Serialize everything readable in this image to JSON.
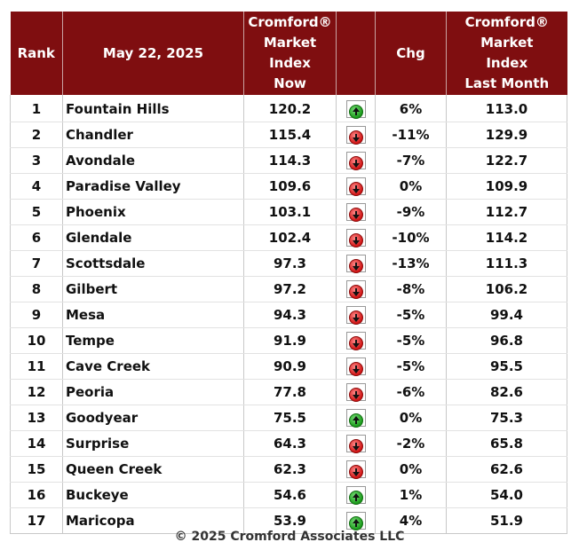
{
  "chart_data": {
    "type": "table",
    "headers": {
      "rank": "Rank",
      "date": "May 22, 2025",
      "now": [
        "Cromford®",
        "Market",
        "Index",
        "Now"
      ],
      "trend": "",
      "chg": "Chg",
      "last": [
        "Cromford®",
        "Market",
        "Index",
        "Last Month"
      ]
    },
    "rows": [
      {
        "rank": "1",
        "city": "Fountain Hills",
        "now": "120.2",
        "trend": "up",
        "chg": "6%",
        "last": "113.0"
      },
      {
        "rank": "2",
        "city": "Chandler",
        "now": "115.4",
        "trend": "down",
        "chg": "-11%",
        "last": "129.9"
      },
      {
        "rank": "3",
        "city": "Avondale",
        "now": "114.3",
        "trend": "down",
        "chg": "-7%",
        "last": "122.7"
      },
      {
        "rank": "4",
        "city": "Paradise Valley",
        "now": "109.6",
        "trend": "down",
        "chg": "0%",
        "last": "109.9"
      },
      {
        "rank": "5",
        "city": "Phoenix",
        "now": "103.1",
        "trend": "down",
        "chg": "-9%",
        "last": "112.7"
      },
      {
        "rank": "6",
        "city": "Glendale",
        "now": "102.4",
        "trend": "down",
        "chg": "-10%",
        "last": "114.2"
      },
      {
        "rank": "7",
        "city": "Scottsdale",
        "now": "97.3",
        "trend": "down",
        "chg": "-13%",
        "last": "111.3"
      },
      {
        "rank": "8",
        "city": "Gilbert",
        "now": "97.2",
        "trend": "down",
        "chg": "-8%",
        "last": "106.2"
      },
      {
        "rank": "9",
        "city": "Mesa",
        "now": "94.3",
        "trend": "down",
        "chg": "-5%",
        "last": "99.4"
      },
      {
        "rank": "10",
        "city": "Tempe",
        "now": "91.9",
        "trend": "down",
        "chg": "-5%",
        "last": "96.8"
      },
      {
        "rank": "11",
        "city": "Cave Creek",
        "now": "90.9",
        "trend": "down",
        "chg": "-5%",
        "last": "95.5"
      },
      {
        "rank": "12",
        "city": "Peoria",
        "now": "77.8",
        "trend": "down",
        "chg": "-6%",
        "last": "82.6"
      },
      {
        "rank": "13",
        "city": "Goodyear",
        "now": "75.5",
        "trend": "up",
        "chg": "0%",
        "last": "75.3"
      },
      {
        "rank": "14",
        "city": "Surprise",
        "now": "64.3",
        "trend": "down",
        "chg": "-2%",
        "last": "65.8"
      },
      {
        "rank": "15",
        "city": "Queen Creek",
        "now": "62.3",
        "trend": "down",
        "chg": "0%",
        "last": "62.6"
      },
      {
        "rank": "16",
        "city": "Buckeye",
        "now": "54.6",
        "trend": "up",
        "chg": "1%",
        "last": "54.0"
      },
      {
        "rank": "17",
        "city": "Maricopa",
        "now": "53.9",
        "trend": "up",
        "chg": "4%",
        "last": "51.9"
      }
    ],
    "trend_icons": {
      "up": "green-up-arrow-icon",
      "down": "red-down-arrow-icon"
    },
    "colors": {
      "header_bg": "#7f0e10",
      "header_text": "#ffffff",
      "up": "#1a9a1a",
      "down": "#d11414"
    }
  },
  "footer": "© 2025 Cromford Associates LLC"
}
